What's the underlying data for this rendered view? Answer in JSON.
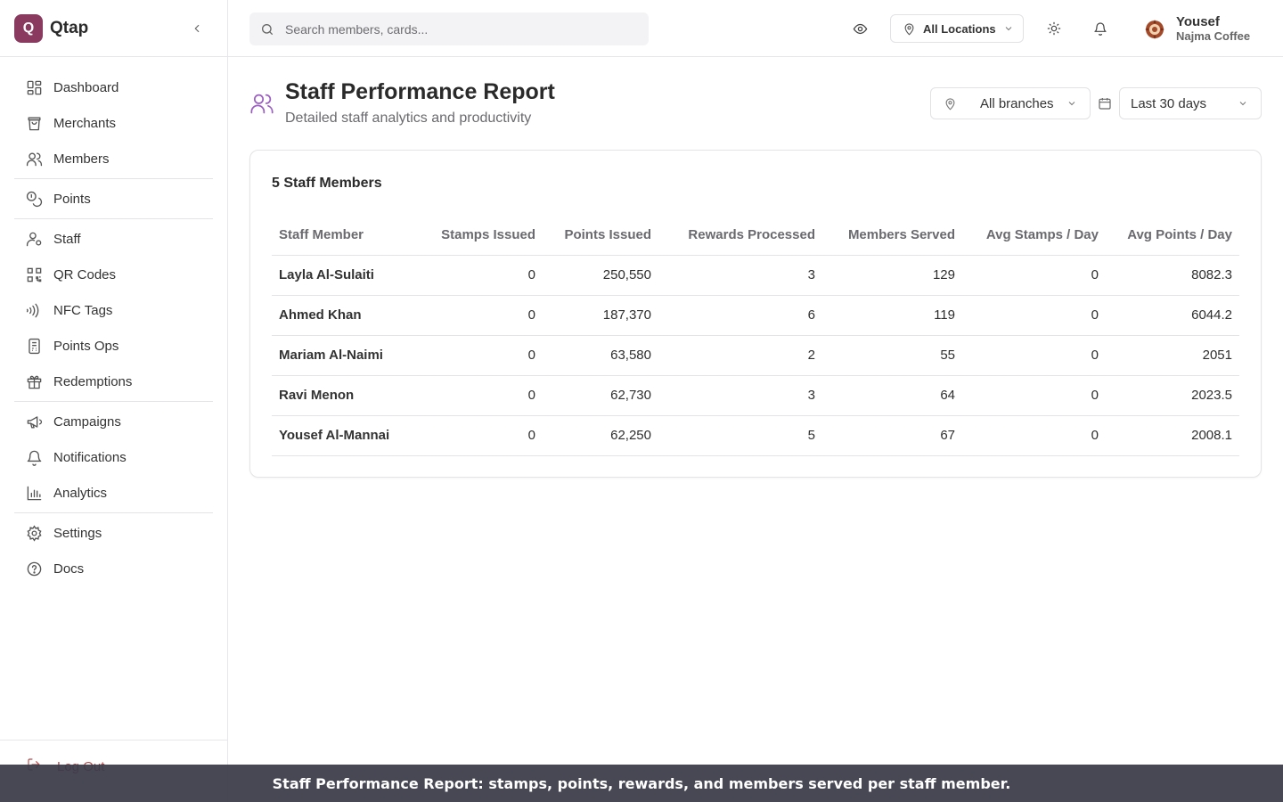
{
  "app": {
    "logo_letter": "Q",
    "name": "Qtap"
  },
  "search": {
    "placeholder": "Search members, cards..."
  },
  "header": {
    "location_label": "All Locations",
    "user_name": "Yousef",
    "user_org": "Najma Coffee"
  },
  "sidebar": {
    "items": [
      {
        "label": "Dashboard",
        "icon": "dashboard-icon"
      },
      {
        "label": "Merchants",
        "icon": "shopping-bag-icon"
      },
      {
        "label": "Members",
        "icon": "users-icon"
      },
      {
        "label": "Points",
        "icon": "coins-icon"
      },
      {
        "label": "Staff",
        "icon": "user-cog-icon"
      },
      {
        "label": "QR Codes",
        "icon": "qr-code-icon"
      },
      {
        "label": "NFC Tags",
        "icon": "nfc-icon"
      },
      {
        "label": "Points Ops",
        "icon": "receipt-icon"
      },
      {
        "label": "Redemptions",
        "icon": "gift-icon"
      },
      {
        "label": "Campaigns",
        "icon": "megaphone-icon"
      },
      {
        "label": "Notifications",
        "icon": "bell-icon"
      },
      {
        "label": "Analytics",
        "icon": "bar-chart-icon"
      },
      {
        "label": "Settings",
        "icon": "gear-icon"
      },
      {
        "label": "Docs",
        "icon": "help-circle-icon"
      }
    ],
    "logout_label": "Log Out"
  },
  "page": {
    "title": "Staff Performance Report",
    "subtitle": "Detailed staff analytics and productivity",
    "branch_filter": "All branches",
    "date_filter": "Last 30 days"
  },
  "table": {
    "title": "5 Staff Members",
    "headers": [
      "Staff Member",
      "Stamps Issued",
      "Points Issued",
      "Rewards Processed",
      "Members Served",
      "Avg Stamps / Day",
      "Avg Points / Day"
    ],
    "rows": [
      [
        "Layla Al-Sulaiti",
        "0",
        "250,550",
        "3",
        "129",
        "0",
        "8082.3"
      ],
      [
        "Ahmed Khan",
        "0",
        "187,370",
        "6",
        "119",
        "0",
        "6044.2"
      ],
      [
        "Mariam Al-Naimi",
        "0",
        "63,580",
        "2",
        "55",
        "0",
        "2051"
      ],
      [
        "Ravi Menon",
        "0",
        "62,730",
        "3",
        "64",
        "0",
        "2023.5"
      ],
      [
        "Yousef Al-Mannai",
        "0",
        "62,250",
        "5",
        "67",
        "0",
        "2008.1"
      ]
    ]
  },
  "caption": "Staff Performance Report: stamps, points, rewards, and members served per staff member.",
  "colors": {
    "brand": "#8a3a5e",
    "accent_icon": "#9b5fc0",
    "caption_bg": "#3a3a48",
    "logout": "#b54a4a"
  }
}
